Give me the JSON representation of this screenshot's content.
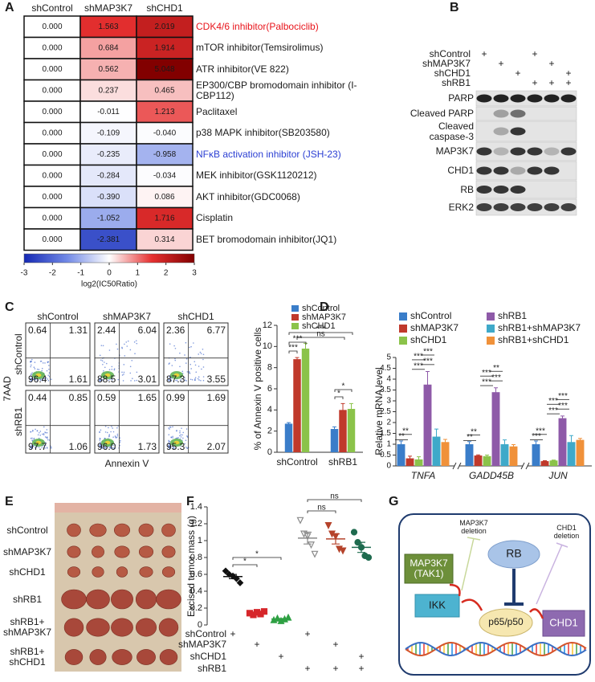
{
  "panel_labels": [
    "A",
    "B",
    "C",
    "D",
    "E",
    "F",
    "G"
  ],
  "chart_data": [
    {
      "type": "heatmap",
      "columns": [
        "shControl",
        "shMAP3K7",
        "shCHD1"
      ],
      "rows": [
        "CDK4/6 inhibitor(Palbociclib)",
        "mTOR inhibitor(Temsirolimus)",
        "ATR inhibitor(VE 822)",
        "EP300/CBP  bromodomain inhibitor (I-CBP112)",
        "Paclitaxel",
        "p38 MAPK inhibitor(SB203580)",
        "NFκB activation inhibitor (JSH-23)",
        "MEK inhibitor(GSK1120212)",
        "AKT inhibitor(GDC0068)",
        "Cisplatin",
        "BET bromodomain inhibitor(JQ1)"
      ],
      "row_colors": [
        "#e8141b",
        "#1a1a1a",
        "#1a1a1a",
        "#1a1a1a",
        "#1a1a1a",
        "#1a1a1a",
        "#2b3fd3",
        "#1a1a1a",
        "#1a1a1a",
        "#1a1a1a",
        "#1a1a1a"
      ],
      "values": [
        [
          0,
          1.563,
          2.019
        ],
        [
          0,
          0.684,
          1.914
        ],
        [
          0,
          0.562,
          5.048
        ],
        [
          0,
          0.237,
          0.465
        ],
        [
          0,
          -0.011,
          1.213
        ],
        [
          0,
          -0.109,
          -0.04
        ],
        [
          0,
          -0.235,
          -0.958
        ],
        [
          0,
          -0.284,
          -0.034
        ],
        [
          0,
          -0.39,
          0.086
        ],
        [
          0,
          -1.052,
          1.716
        ],
        [
          0,
          -2.381,
          0.314
        ]
      ],
      "value_labels": [
        [
          "0.000",
          "1.563",
          "2.019"
        ],
        [
          "0.000",
          "0.684",
          "1.914"
        ],
        [
          "0.000",
          "0.562",
          "5.048"
        ],
        [
          "0.000",
          "0.237",
          "0.465"
        ],
        [
          "0.000",
          "-0.011",
          "1.213"
        ],
        [
          "0.000",
          "-0.109",
          "-0.040"
        ],
        [
          "0.000",
          "-0.235",
          "-0.958"
        ],
        [
          "0.000",
          "-0.284",
          "-0.034"
        ],
        [
          "0.000",
          "-0.390",
          "0.086"
        ],
        [
          "0.000",
          "-1.052",
          "1.716"
        ],
        [
          "0.000",
          "-2.381",
          "0.314"
        ]
      ],
      "colorbar": {
        "label": "log2(IC50Ratio)",
        "lim": [
          -3,
          3
        ],
        "ticks": [
          -3,
          -2,
          -1,
          0,
          1,
          2,
          3
        ],
        "colors": [
          "#1428b4",
          "#7088e6",
          "#ffffff",
          "#e63030",
          "#820000"
        ]
      }
    },
    {
      "type": "bar",
      "ylabel": "% of Annexin V positive cells",
      "categories": [
        "shControl",
        "shRB1"
      ],
      "series": [
        {
          "name": "shControl",
          "color": "#3a7dc9",
          "values": [
            2.7,
            2.2
          ],
          "errors": [
            0.1,
            0.2
          ]
        },
        {
          "name": "shMAP3K7",
          "color": "#c0392b",
          "values": [
            8.8,
            4.0
          ],
          "errors": [
            0.15,
            0.6
          ]
        },
        {
          "name": "shCHD1",
          "color": "#8bc34a",
          "values": [
            9.8,
            4.1
          ],
          "errors": [
            0.5,
            0.5
          ]
        }
      ],
      "ylim": [
        0,
        12
      ],
      "yticks": [
        0,
        2,
        4,
        6,
        8,
        10,
        12
      ],
      "annotations": [
        "***",
        "***",
        "ns",
        "***",
        "*",
        "*"
      ]
    },
    {
      "type": "bar",
      "ylabel": "Relative mRNA level",
      "categories": [
        "TNFA",
        "GADD45B",
        "JUN"
      ],
      "series": [
        {
          "name": "shControl",
          "color": "#3a7dc9",
          "values": [
            1.0,
            1.0,
            1.0
          ],
          "errors": [
            0.15,
            0.12,
            0.15
          ]
        },
        {
          "name": "shMAP3K7",
          "color": "#c0392b",
          "values": [
            0.35,
            0.48,
            0.22
          ],
          "errors": [
            0.1,
            0.03,
            0.02
          ]
        },
        {
          "name": "shCHD1",
          "color": "#8bc34a",
          "values": [
            0.3,
            0.45,
            0.25
          ],
          "errors": [
            0.12,
            0.05,
            0.02
          ]
        },
        {
          "name": "shRB1",
          "color": "#8e5aa8",
          "values": [
            3.75,
            3.4,
            2.2
          ],
          "errors": [
            0.6,
            0.2,
            0.1
          ]
        },
        {
          "name": "shRB1+shMAP3K7",
          "color": "#3fa9c9",
          "values": [
            1.35,
            1.0,
            1.1
          ],
          "errors": [
            0.35,
            0.2,
            0.3
          ]
        },
        {
          "name": "shRB1+shCHD1",
          "color": "#f0913a",
          "values": [
            1.1,
            0.9,
            1.2
          ],
          "errors": [
            0.12,
            0.08,
            0.07
          ]
        }
      ],
      "ylim": [
        0,
        5
      ],
      "yticks": [
        0,
        0.5,
        1,
        1.5,
        2,
        2.5,
        3,
        3.5,
        4,
        4.5,
        5
      ],
      "axis_break": true,
      "annotations": [
        [
          "**",
          "**",
          "***",
          "***",
          "***",
          "***"
        ],
        [
          "**",
          "**",
          "***",
          "***",
          "***",
          "**"
        ],
        [
          "***",
          "***",
          "***",
          "***",
          "***",
          "***"
        ]
      ]
    },
    {
      "type": "scatter",
      "ylabel": "Excised tumor mass (g)",
      "ylim": [
        0,
        1.4
      ],
      "yticks": [
        0,
        0.2,
        0.4,
        0.6,
        0.8,
        1,
        1.2,
        1.4
      ],
      "series": [
        {
          "color": "#111111",
          "marker": "diamond",
          "filled": true,
          "values": [
            0.64,
            0.6,
            0.58,
            0.55,
            0.5
          ],
          "mean": 0.574,
          "sem": 0.025
        },
        {
          "color": "#d6262a",
          "marker": "square",
          "filled": true,
          "values": [
            0.14,
            0.12,
            0.15,
            0.13,
            0.16
          ],
          "mean": 0.14,
          "sem": 0.007
        },
        {
          "color": "#2ea043",
          "marker": "triangle",
          "filled": true,
          "values": [
            0.06,
            0.08,
            0.05,
            0.07,
            0.09
          ],
          "mean": 0.07,
          "sem": 0.007
        },
        {
          "color": "#8a8a8a",
          "marker": "triangle-down",
          "filled": false,
          "values": [
            1.24,
            1.08,
            1.05,
            0.95,
            0.84
          ],
          "mean": 1.03,
          "sem": 0.07
        },
        {
          "color": "#b5432b",
          "marker": "triangle-down",
          "filled": true,
          "values": [
            1.18,
            1.08,
            1.05,
            0.9,
            0.88
          ],
          "mean": 1.02,
          "sem": 0.06
        },
        {
          "color": "#1f6b4f",
          "marker": "circle",
          "filled": true,
          "values": [
            1.1,
            0.98,
            0.92,
            0.82,
            0.8
          ],
          "mean": 0.92,
          "sem": 0.06
        }
      ],
      "design_marker": "+",
      "design": [
        {
          "name": "shControl",
          "groups": [
            0,
            3
          ]
        },
        {
          "name": "shMAP3K7",
          "groups": [
            1,
            4
          ]
        },
        {
          "name": "shCHD1",
          "groups": [
            2,
            5
          ]
        },
        {
          "name": "shRB1",
          "groups": [
            3,
            4,
            5
          ]
        }
      ],
      "annotations": [
        "*",
        "*",
        "ns",
        "ns"
      ]
    }
  ],
  "blot": {
    "marker": "+",
    "design": [
      {
        "name": "shControl",
        "lanes": [
          0,
          3
        ]
      },
      {
        "name": "shMAP3K7",
        "lanes": [
          1,
          4
        ]
      },
      {
        "name": "shCHD1",
        "lanes": [
          2,
          5
        ]
      },
      {
        "name": "shRB1",
        "lanes": [
          3,
          4,
          5
        ]
      }
    ],
    "bands": [
      "PARP",
      "Cleaved PARP",
      "Cleaved caspase-3",
      "MAP3K7",
      "CHD1",
      "RB",
      "ERK2"
    ]
  },
  "flow": {
    "columns": [
      "shControl",
      "shMAP3K7",
      "shCHD1"
    ],
    "rows": [
      "shControl",
      "shRB1"
    ],
    "quadrants": [
      [
        [
          "0.64",
          "1.31",
          "96.4",
          "1.61"
        ],
        [
          "2.44",
          "6.04",
          "88.5",
          "3.01"
        ],
        [
          "2.36",
          "6.77",
          "87.3",
          "3.55"
        ]
      ],
      [
        [
          "0.44",
          "0.85",
          "97.7",
          "1.06"
        ],
        [
          "0.59",
          "1.65",
          "96.0",
          "1.73"
        ],
        [
          "0.99",
          "1.69",
          "95.3",
          "2.07"
        ]
      ]
    ],
    "ylabel": "7AAD",
    "xlabel": "Annexin V"
  },
  "tumor_photo": {
    "labels": [
      "shControl",
      "shMAP3K7",
      "shCHD1",
      "shRB1",
      "shRB1+ shMAP3K7",
      "shRB1+ shCHD1"
    ]
  },
  "diagram": {
    "nodes": [
      "MAP3K7 (TAK1)",
      "MAP3K7 deletion",
      "RB",
      "CHD1 deletion",
      "IKK",
      "p65/p50",
      "CHD1"
    ]
  }
}
